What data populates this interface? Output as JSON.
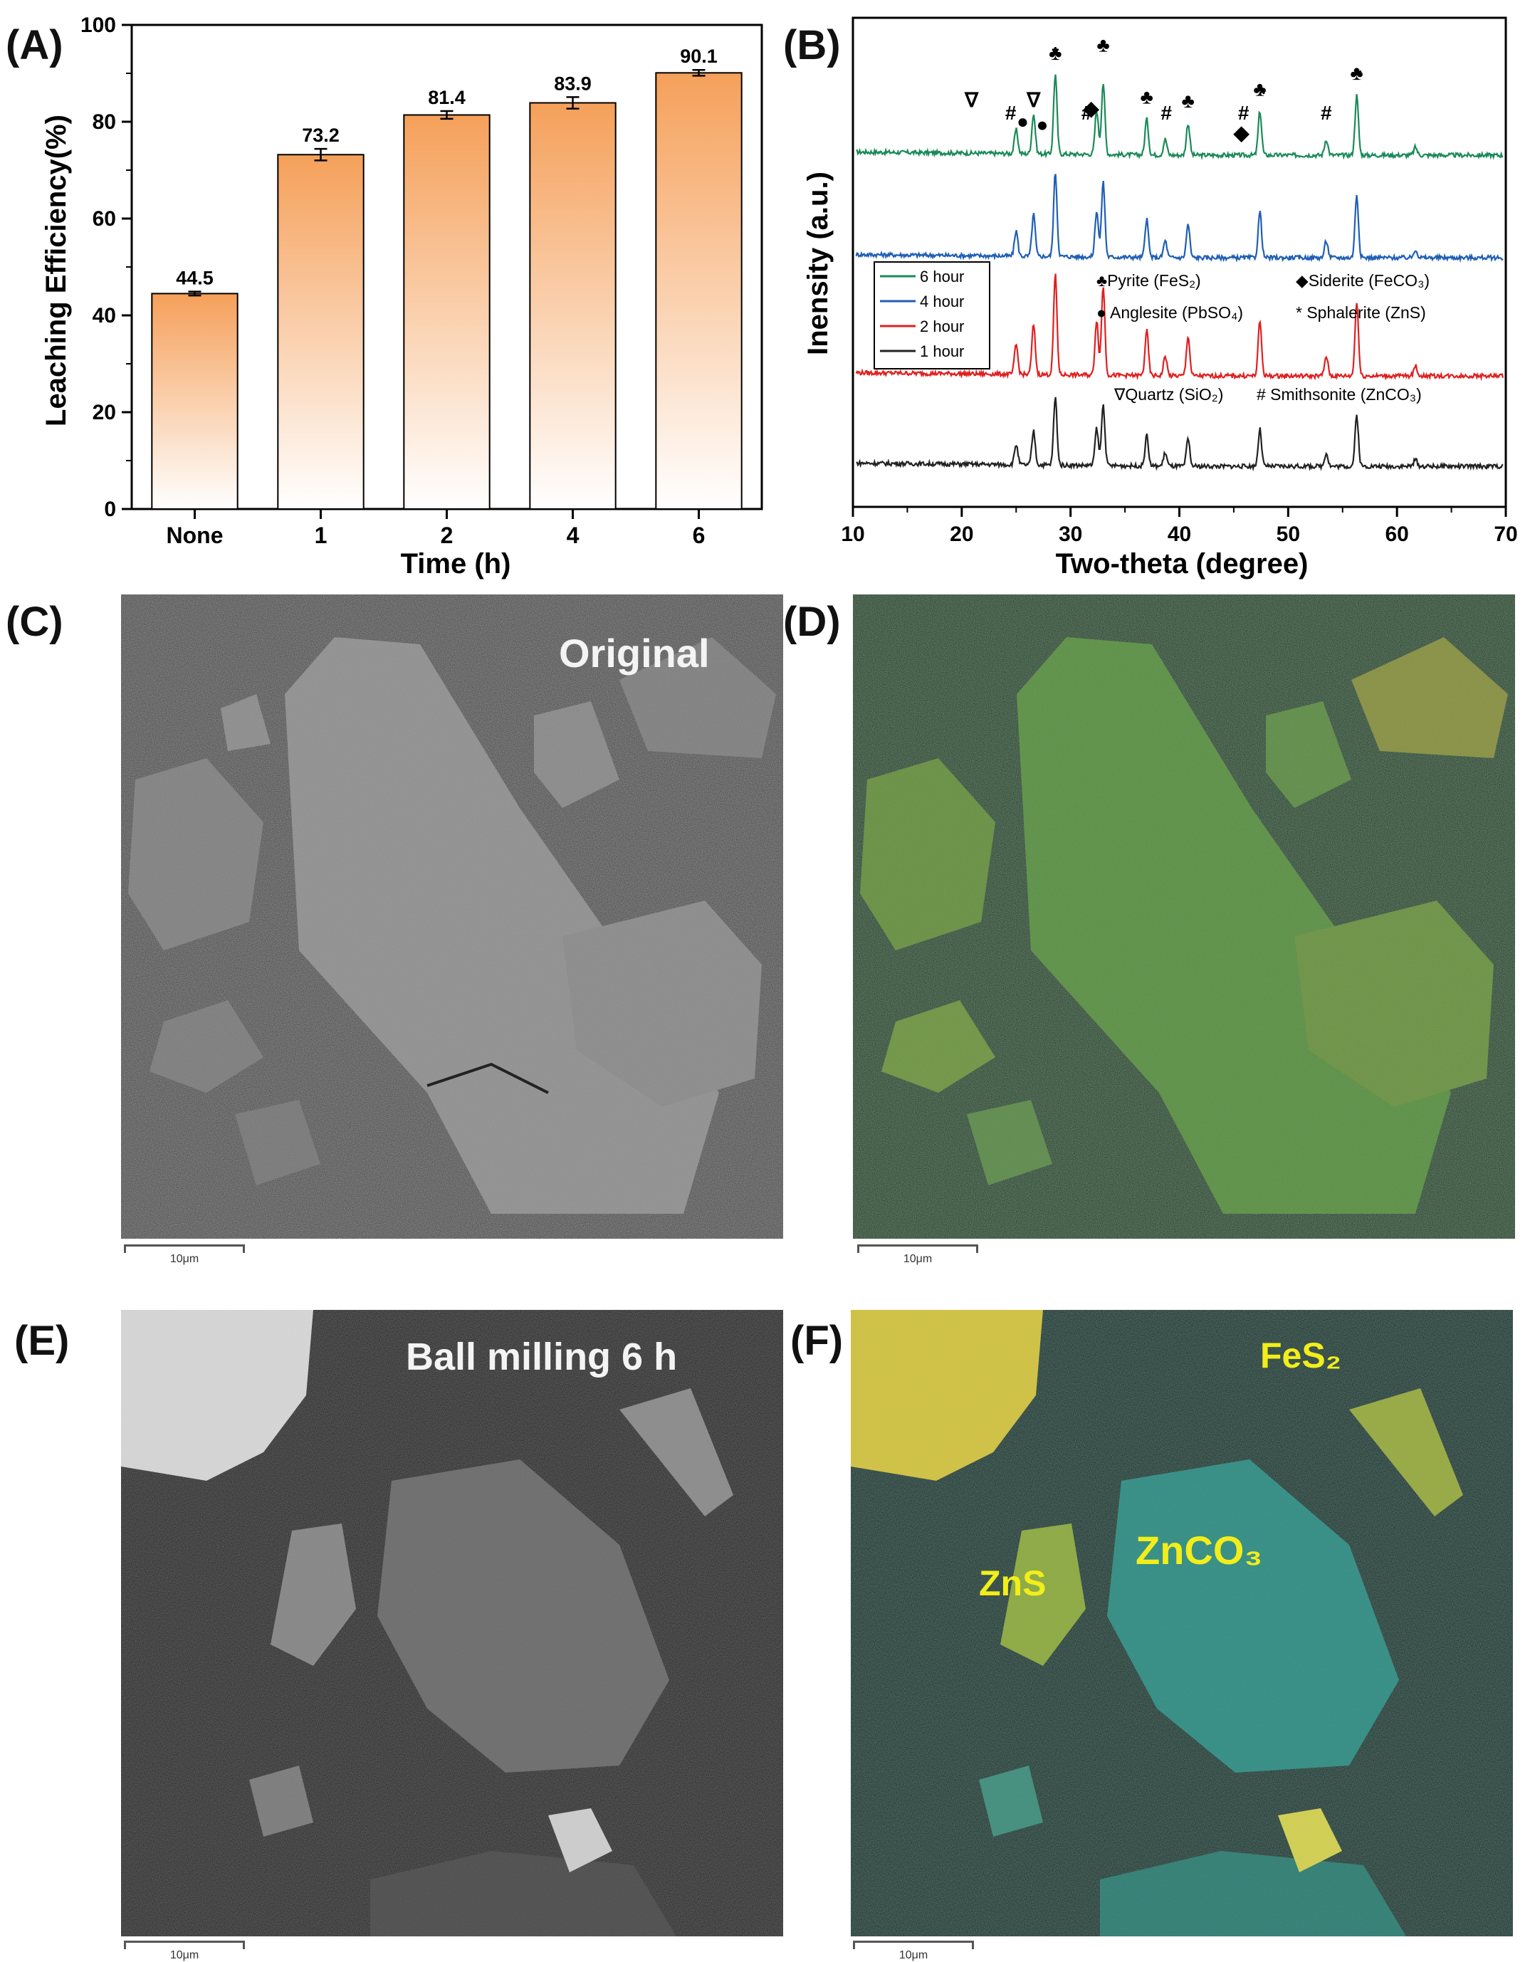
{
  "panels": {
    "a": "(A)",
    "b": "(B)",
    "c": "(C)",
    "d": "(D)",
    "e": "(E)",
    "f": "(F)"
  },
  "chart_data": [
    {
      "type": "bar",
      "categories": [
        "None",
        "1",
        "2",
        "4",
        "6"
      ],
      "values": [
        44.5,
        73.2,
        81.4,
        83.9,
        90.1
      ],
      "errors": [
        0.4,
        1.2,
        0.8,
        1.2,
        0.6
      ],
      "value_labels": [
        "44.5",
        "73.2",
        "81.4",
        "83.9",
        "90.1"
      ],
      "xlabel": "Time (h)",
      "ylabel": "Leaching Efficiency(%)",
      "ylim": [
        0,
        100
      ],
      "yticks": [
        "0",
        "20",
        "40",
        "60",
        "80",
        "100"
      ],
      "bar_color_top": "#f5a05a",
      "bar_color_bottom": "#ffffff"
    },
    {
      "type": "line",
      "xlabel": "Two-theta (degree)",
      "ylabel": "Inensity (a.u.)",
      "xlim": [
        10,
        70
      ],
      "xticks": [
        "10",
        "20",
        "30",
        "40",
        "50",
        "60",
        "70"
      ],
      "series": [
        {
          "name": "6 hour",
          "color": "#1b8a5a"
        },
        {
          "name": "4 hour",
          "color": "#1f5fb5"
        },
        {
          "name": "2 hour",
          "color": "#e02020"
        },
        {
          "name": "1 hour",
          "color": "#222222"
        }
      ],
      "peaks": [
        {
          "two_theta": 25.0,
          "height": 0.3
        },
        {
          "two_theta": 26.6,
          "height": 0.5
        },
        {
          "two_theta": 28.6,
          "height": 1.0
        },
        {
          "two_theta": 32.4,
          "height": 0.55
        },
        {
          "two_theta": 33.0,
          "height": 0.9
        },
        {
          "two_theta": 37.0,
          "height": 0.45
        },
        {
          "two_theta": 38.7,
          "height": 0.2
        },
        {
          "two_theta": 40.8,
          "height": 0.4
        },
        {
          "two_theta": 47.4,
          "height": 0.55
        },
        {
          "two_theta": 53.5,
          "height": 0.2
        },
        {
          "two_theta": 56.3,
          "height": 0.75
        },
        {
          "two_theta": 61.7,
          "height": 0.1
        }
      ],
      "legend_lines": [
        {
          "text": "♣Pyrite (FeS₂)"
        },
        {
          "text": "◆Siderite (FeCO₃)"
        },
        {
          "text": "● Anglesite (PbSO₄)"
        },
        {
          "text": "* Sphalerite (ZnS)"
        },
        {
          "text": "∇Quartz (SiO₂)"
        },
        {
          "text": "# Smithsonite (ZnCO₃)"
        }
      ],
      "peak_markers": [
        {
          "symbol": "∇",
          "two_theta": 20.9
        },
        {
          "symbol": "#",
          "two_theta": 24.5
        },
        {
          "symbol": "●",
          "two_theta": 25.6
        },
        {
          "symbol": "∇",
          "two_theta": 26.6
        },
        {
          "symbol": "●",
          "two_theta": 27.4
        },
        {
          "symbol": "♣",
          "two_theta": 28.6
        },
        {
          "symbol": "*",
          "two_theta": 28.6
        },
        {
          "symbol": "#",
          "two_theta": 31.5
        },
        {
          "symbol": "◆",
          "two_theta": 31.9
        },
        {
          "symbol": "♣",
          "two_theta": 33.0
        },
        {
          "symbol": "♣",
          "two_theta": 37.0
        },
        {
          "symbol": "#",
          "two_theta": 38.8
        },
        {
          "symbol": "♣",
          "two_theta": 40.8
        },
        {
          "symbol": "#",
          "two_theta": 45.9
        },
        {
          "symbol": "◆",
          "two_theta": 45.7
        },
        {
          "symbol": "♣",
          "two_theta": 47.4
        },
        {
          "symbol": "*",
          "two_theta": 47.6
        },
        {
          "symbol": "#",
          "two_theta": 53.5
        },
        {
          "symbol": "♣",
          "two_theta": 56.3
        },
        {
          "symbol": "*",
          "two_theta": 56.4
        }
      ]
    }
  ],
  "images": {
    "c": {
      "label": "Original",
      "scalebar": "10μm"
    },
    "d": {
      "scalebar": "10μm"
    },
    "e": {
      "label": "Ball milling 6 h",
      "scalebar": "10μm"
    },
    "f": {
      "scalebar": "10μm",
      "labels": {
        "fes2": "FeS₂",
        "zns": "ZnS",
        "znco3": "ZnCO₃"
      }
    }
  }
}
